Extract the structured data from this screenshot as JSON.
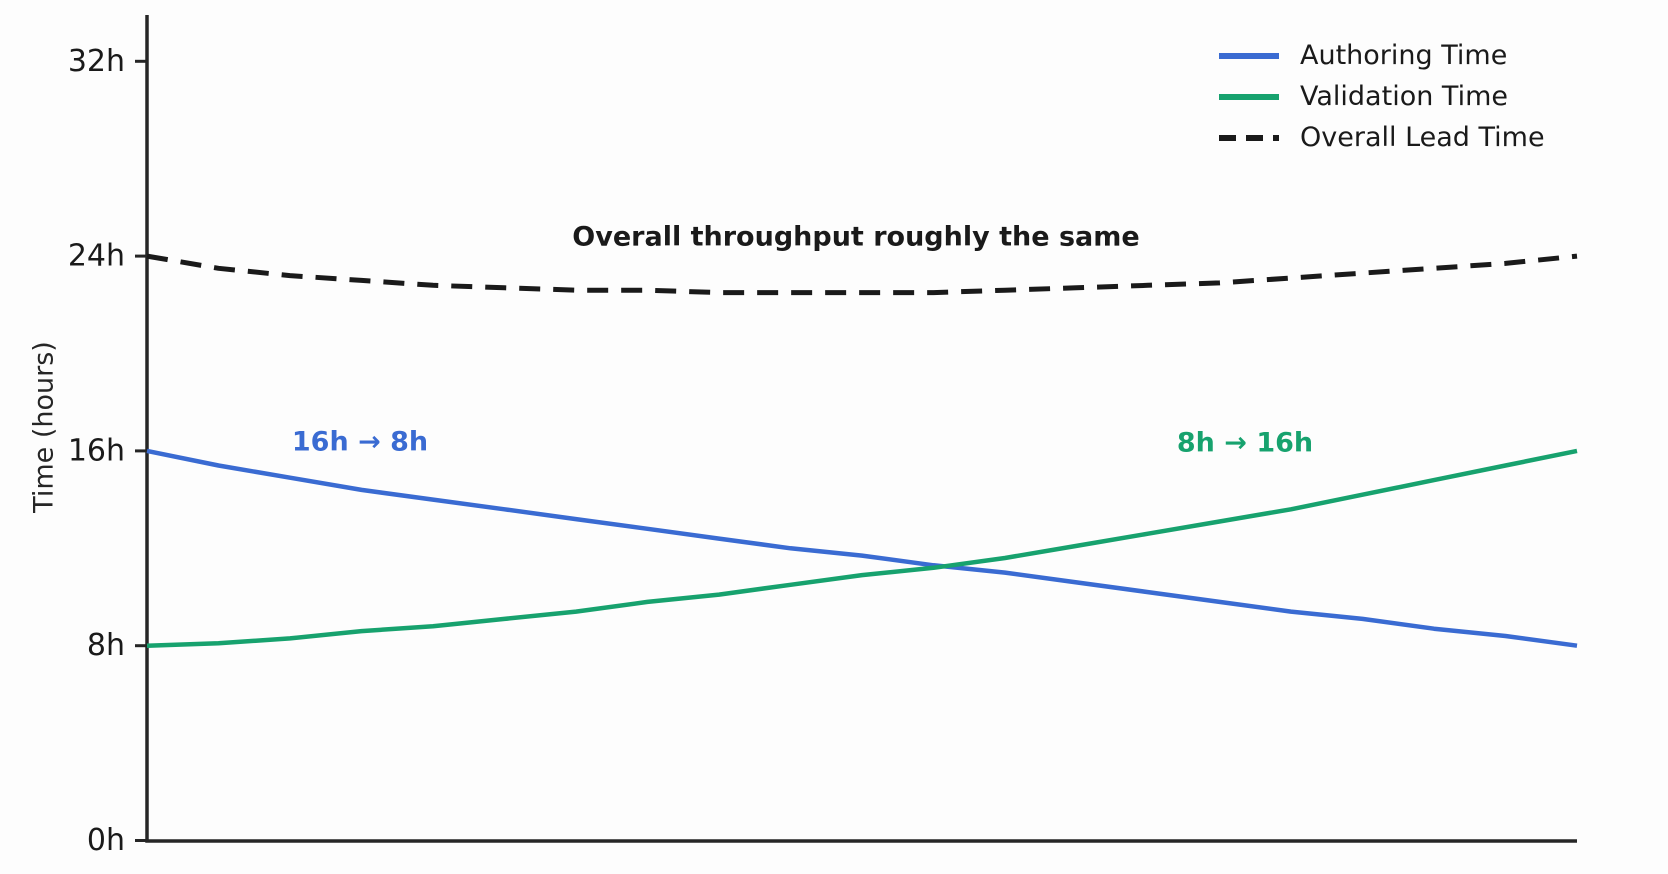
{
  "chart_data": {
    "type": "line",
    "title": "",
    "xlabel": "",
    "ylabel": "Time (hours)",
    "ylim": [
      0,
      32
    ],
    "grid": false,
    "legend_position": "upper right",
    "yticks": [
      {
        "value": 0,
        "label": "0h"
      },
      {
        "value": 8,
        "label": "8h"
      },
      {
        "value": 16,
        "label": "16h"
      },
      {
        "value": 24,
        "label": "24h"
      },
      {
        "value": 32,
        "label": "32h"
      }
    ],
    "x": [
      0,
      0.05,
      0.1,
      0.15,
      0.2,
      0.25,
      0.3,
      0.35,
      0.4,
      0.45,
      0.5,
      0.55,
      0.6,
      0.65,
      0.7,
      0.75,
      0.8,
      0.85,
      0.9,
      0.95,
      1
    ],
    "series": [
      {
        "name": "Authoring Time",
        "style": "solid",
        "color": "#3a6bd2",
        "start_value_hours": 16,
        "end_value_hours": 8,
        "values": [
          16,
          15.4,
          14.9,
          14.4,
          14.0,
          13.6,
          13.2,
          12.8,
          12.4,
          12.0,
          11.7,
          11.3,
          11.0,
          10.6,
          10.2,
          9.8,
          9.4,
          9.1,
          8.7,
          8.4,
          8
        ]
      },
      {
        "name": "Validation Time",
        "style": "solid",
        "color": "#17a26e",
        "start_value_hours": 8,
        "end_value_hours": 16,
        "values": [
          8,
          8.1,
          8.3,
          8.6,
          8.8,
          9.1,
          9.4,
          9.8,
          10.1,
          10.5,
          10.9,
          11.2,
          11.6,
          12.1,
          12.6,
          13.1,
          13.6,
          14.2,
          14.8,
          15.4,
          16
        ]
      },
      {
        "name": "Overall Lead Time",
        "style": "dashed",
        "color": "#1a1a1a",
        "start_value_hours": 24,
        "end_value_hours": 24,
        "values": [
          24,
          23.5,
          23.2,
          23.0,
          22.8,
          22.7,
          22.6,
          22.6,
          22.5,
          22.5,
          22.5,
          22.5,
          22.6,
          22.7,
          22.8,
          22.9,
          23.1,
          23.3,
          23.5,
          23.7,
          24
        ]
      }
    ]
  },
  "annotations": {
    "throughput": {
      "text": "Overall throughput roughly the same",
      "color": "#1a1a1a"
    },
    "authoring_change": {
      "text": "16h → 8h",
      "color": "#3a6bd2"
    },
    "validation_change": {
      "text": "8h → 16h",
      "color": "#17a26e"
    }
  },
  "axis": {
    "color": "#262626",
    "tick_label_color": "#1a1a1a"
  }
}
